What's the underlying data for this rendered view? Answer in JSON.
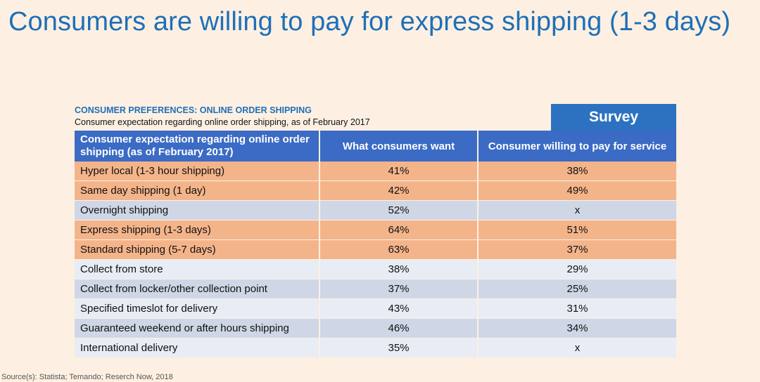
{
  "slide": {
    "title": "Consumers are willing to pay for express shipping (1-3 days)",
    "source": "Source(s): Statista; Temando; Reserch Now, 2018"
  },
  "badge": {
    "label": "Survey"
  },
  "colors": {
    "highlight_row": "#f4b48a",
    "header": "#3b6bc4",
    "title": "#1f6fb8"
  },
  "chart_data": {
    "type": "table",
    "title": "CONSUMER PREFERENCES: ONLINE ORDER SHIPPING",
    "subtitle": "Consumer expectation regarding online order shipping, as of February 2017",
    "columns": [
      "Consumer expectation regarding online order shipping (as of February 2017)",
      "What consumers want",
      "Consumer willing to pay for service"
    ],
    "rows": [
      {
        "label": "Hyper local (1-3 hour shipping)",
        "want": "41%",
        "pay": "38%",
        "highlight": true
      },
      {
        "label": "Same day shipping (1 day)",
        "want": "42%",
        "pay": "49%",
        "highlight": true
      },
      {
        "label": "Overnight shipping",
        "want": "52%",
        "pay": "x",
        "highlight": false
      },
      {
        "label": "Express shipping (1-3 days)",
        "want": "64%",
        "pay": "51%",
        "highlight": true
      },
      {
        "label": "Standard shipping (5-7 days)",
        "want": "63%",
        "pay": "37%",
        "highlight": true
      },
      {
        "label": "Collect from store",
        "want": "38%",
        "pay": "29%",
        "highlight": false
      },
      {
        "label": "Collect from locker/other collection point",
        "want": "37%",
        "pay": "25%",
        "highlight": false
      },
      {
        "label": "Specified timeslot for delivery",
        "want": "43%",
        "pay": "31%",
        "highlight": false
      },
      {
        "label": "Guaranteed weekend or after hours shipping",
        "want": "46%",
        "pay": "34%",
        "highlight": false
      },
      {
        "label": "International delivery",
        "want": "35%",
        "pay": "x",
        "highlight": false
      }
    ]
  }
}
